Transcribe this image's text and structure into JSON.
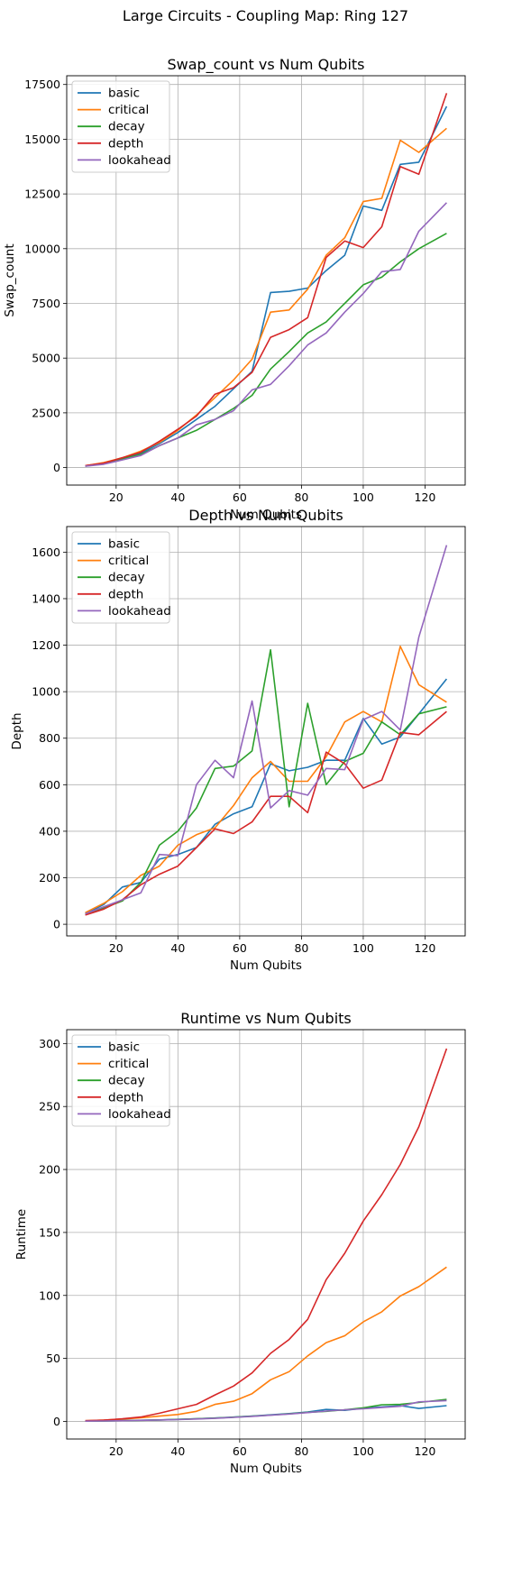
{
  "figure_title": "Large Circuits - Coupling Map: Ring 127",
  "colors": {
    "basic": "#1f77b4",
    "critical": "#ff7f0e",
    "decay": "#2ca02c",
    "depth": "#d62728",
    "lookahead": "#9467bd",
    "grid": "#b0b0b0"
  },
  "chart_data": [
    {
      "type": "line",
      "title": "Swap_count vs Num Qubits",
      "xlabel": "Num Qubits",
      "ylabel": "Swap_count",
      "xlim": [
        4,
        133
      ],
      "ylim": [
        -800,
        17900
      ],
      "xticks": [
        20,
        40,
        60,
        80,
        100,
        120
      ],
      "yticks": [
        0,
        2500,
        5000,
        7500,
        10000,
        12500,
        15000,
        17500
      ],
      "grid": true,
      "legend": "upper-left",
      "x": [
        10,
        16,
        22,
        28,
        34,
        40,
        46,
        52,
        58,
        64,
        70,
        76,
        82,
        88,
        94,
        100,
        106,
        112,
        118,
        127
      ],
      "series": [
        {
          "name": "basic",
          "values": [
            80,
            200,
            400,
            650,
            1100,
            1600,
            2200,
            2800,
            3600,
            4400,
            8000,
            8050,
            8200,
            9000,
            9700,
            11950,
            11750,
            13850,
            13950,
            16500
          ]
        },
        {
          "name": "critical",
          "values": [
            80,
            230,
            450,
            750,
            1150,
            1700,
            2400,
            3200,
            4000,
            4950,
            7100,
            7200,
            8150,
            9700,
            10500,
            12150,
            12300,
            14950,
            14400,
            15500
          ]
        },
        {
          "name": "decay",
          "values": [
            70,
            180,
            400,
            600,
            1000,
            1350,
            1700,
            2200,
            2700,
            3300,
            4500,
            5300,
            6150,
            6650,
            7500,
            8350,
            8700,
            9400,
            10000,
            10700
          ]
        },
        {
          "name": "depth",
          "values": [
            90,
            200,
            450,
            700,
            1200,
            1750,
            2350,
            3350,
            3650,
            4350,
            5950,
            6300,
            6850,
            9600,
            10350,
            10050,
            11000,
            13750,
            13400,
            17100
          ]
        },
        {
          "name": "lookahead",
          "values": [
            60,
            150,
            350,
            550,
            1000,
            1350,
            1950,
            2200,
            2600,
            3550,
            3800,
            4650,
            5600,
            6150,
            7100,
            7950,
            8950,
            9050,
            10800,
            12100
          ]
        }
      ]
    },
    {
      "type": "line",
      "title": "Depth vs Num Qubits",
      "xlabel": "Num Qubits",
      "ylabel": "Depth",
      "xlim": [
        4,
        133
      ],
      "ylim": [
        -50,
        1710
      ],
      "xticks": [
        20,
        40,
        60,
        80,
        100,
        120
      ],
      "yticks": [
        0,
        200,
        400,
        600,
        800,
        1000,
        1200,
        1400,
        1600
      ],
      "grid": true,
      "legend": "upper-left",
      "x": [
        10,
        16,
        22,
        28,
        34,
        40,
        46,
        52,
        58,
        64,
        70,
        76,
        82,
        88,
        94,
        100,
        106,
        112,
        118,
        127
      ],
      "series": [
        {
          "name": "basic",
          "values": [
            45,
            85,
            160,
            180,
            280,
            300,
            330,
            430,
            475,
            505,
            690,
            660,
            675,
            705,
            705,
            885,
            775,
            805,
            905,
            1055
          ]
        },
        {
          "name": "critical",
          "values": [
            50,
            90,
            140,
            210,
            250,
            340,
            385,
            415,
            510,
            630,
            700,
            615,
            615,
            720,
            870,
            915,
            870,
            1195,
            1030,
            955
          ]
        },
        {
          "name": "decay",
          "values": [
            45,
            70,
            100,
            180,
            340,
            400,
            500,
            670,
            680,
            745,
            1180,
            505,
            950,
            600,
            700,
            735,
            870,
            815,
            905,
            935
          ]
        },
        {
          "name": "depth",
          "values": [
            40,
            65,
            105,
            170,
            215,
            250,
            330,
            410,
            390,
            440,
            550,
            550,
            480,
            740,
            690,
            585,
            620,
            825,
            815,
            915
          ]
        },
        {
          "name": "lookahead",
          "values": [
            45,
            75,
            105,
            135,
            300,
            295,
            600,
            705,
            630,
            960,
            500,
            575,
            555,
            670,
            665,
            880,
            915,
            835,
            1235,
            1630
          ]
        }
      ]
    },
    {
      "type": "line",
      "title": "Runtime vs Num Qubits",
      "xlabel": "Num Qubits",
      "ylabel": "Runtime",
      "xlim": [
        4,
        133
      ],
      "ylim": [
        -14,
        311
      ],
      "xticks": [
        20,
        40,
        60,
        80,
        100,
        120
      ],
      "yticks": [
        0,
        50,
        100,
        150,
        200,
        250,
        300
      ],
      "grid": true,
      "legend": "upper-left",
      "x": [
        10,
        16,
        22,
        28,
        34,
        40,
        46,
        52,
        58,
        64,
        70,
        76,
        82,
        88,
        94,
        100,
        106,
        112,
        118,
        127
      ],
      "series": [
        {
          "name": "basic",
          "values": [
            0.2,
            0.4,
            0.6,
            0.9,
            1.2,
            1.6,
            2.1,
            2.7,
            3.4,
            4.2,
            5.2,
            6.2,
            7.5,
            9.5,
            8.8,
            10.5,
            11.5,
            12.5,
            10.3,
            12.5
          ]
        },
        {
          "name": "critical",
          "values": [
            0.5,
            1.0,
            1.8,
            2.8,
            4.2,
            5.5,
            8.0,
            13.5,
            16.0,
            22.0,
            33.0,
            39.5,
            52.0,
            62.5,
            68.0,
            79.0,
            87.0,
            99.5,
            107.0,
            122.5
          ]
        },
        {
          "name": "decay",
          "values": [
            0.2,
            0.3,
            0.5,
            0.8,
            1.1,
            1.5,
            2.0,
            2.6,
            3.3,
            4.1,
            5.0,
            6.0,
            7.2,
            8.0,
            9.2,
            10.8,
            13.2,
            13.5,
            15.0,
            17.5
          ]
        },
        {
          "name": "depth",
          "values": [
            0.5,
            1.0,
            2.0,
            3.5,
            6.5,
            10.0,
            13.5,
            21.0,
            28.0,
            38.5,
            54.0,
            65.0,
            81.0,
            112.5,
            133.5,
            159.0,
            180.0,
            204.0,
            234.0,
            296.0
          ]
        },
        {
          "name": "lookahead",
          "values": [
            0.2,
            0.3,
            0.5,
            0.8,
            1.1,
            1.4,
            1.9,
            2.4,
            3.2,
            4.0,
            4.9,
            5.8,
            7.0,
            8.2,
            9.2,
            10.0,
            11.0,
            12.0,
            15.5,
            16.5
          ]
        }
      ]
    }
  ]
}
